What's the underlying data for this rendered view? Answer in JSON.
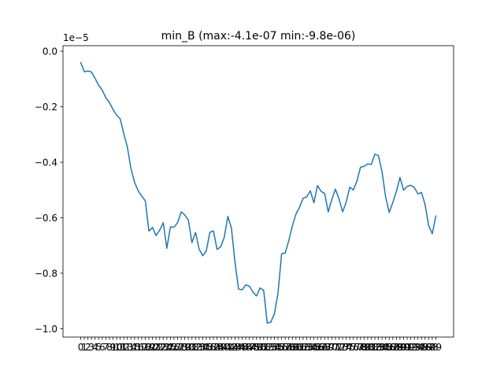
{
  "chart_data": {
    "type": "line",
    "title": "min_B (max:-4.1e-07 min:-9.8e-06)",
    "xlabel": "",
    "ylabel": "",
    "y_offset_text": "1e−5",
    "y_scale_factor": 1e-05,
    "ylim": [
      -1.03,
      0.02
    ],
    "xlim": [
      -4.95,
      103.95
    ],
    "grid": false,
    "legend": "none",
    "x_tick_labels": [
      "0",
      "1",
      "2",
      "3",
      "4",
      "5",
      "6",
      "7",
      "8",
      "9",
      "10",
      "11",
      "12",
      "13",
      "14",
      "15",
      "16",
      "17",
      "18",
      "19",
      "20",
      "21",
      "22",
      "23",
      "24",
      "25",
      "26",
      "27",
      "28",
      "29",
      "30",
      "31",
      "32",
      "33",
      "34",
      "35",
      "36",
      "37",
      "38",
      "39",
      "40",
      "41",
      "42",
      "43",
      "44",
      "45",
      "46",
      "47",
      "48",
      "49",
      "50",
      "51",
      "52",
      "53",
      "54",
      "55",
      "56",
      "57",
      "58",
      "59",
      "60",
      "61",
      "62",
      "63",
      "64",
      "65",
      "66",
      "67",
      "68",
      "69",
      "70",
      "71",
      "72",
      "73",
      "74",
      "75",
      "76",
      "77",
      "78",
      "79",
      "80",
      "81",
      "82",
      "83",
      "84",
      "85",
      "86",
      "87",
      "88",
      "89",
      "90",
      "91",
      "92",
      "93",
      "94",
      "95",
      "96",
      "97",
      "98",
      "99"
    ],
    "y_ticks": [
      0.0,
      -0.2,
      -0.4,
      -0.6,
      -0.8,
      -1.0
    ],
    "y_tick_labels": [
      "0.0",
      "−0.2",
      "−0.4",
      "−0.6",
      "−0.8",
      "−1.0"
    ],
    "series": [
      {
        "color": "#1f77b4",
        "x": [
          0,
          1,
          2,
          3,
          4,
          5,
          6,
          7,
          8,
          9,
          10,
          11,
          12,
          13,
          14,
          15,
          16,
          17,
          18,
          19,
          20,
          21,
          22,
          23,
          24,
          25,
          26,
          27,
          28,
          29,
          30,
          31,
          32,
          33,
          34,
          35,
          36,
          37,
          38,
          39,
          40,
          41,
          42,
          43,
          44,
          45,
          46,
          47,
          48,
          49,
          50,
          51,
          52,
          53,
          54,
          55,
          56,
          57,
          58,
          59,
          60,
          61,
          62,
          63,
          64,
          65,
          66,
          67,
          68,
          69,
          70,
          71,
          72,
          73,
          74,
          75,
          76,
          77,
          78,
          79,
          80,
          81,
          82,
          83,
          84,
          85,
          86,
          87,
          88,
          89,
          90,
          91,
          92,
          93,
          94,
          95,
          96,
          97,
          98,
          99
        ],
        "values": [
          -0.041,
          -0.074,
          -0.071,
          -0.075,
          -0.098,
          -0.123,
          -0.14,
          -0.168,
          -0.185,
          -0.21,
          -0.23,
          -0.244,
          -0.297,
          -0.346,
          -0.423,
          -0.472,
          -0.503,
          -0.522,
          -0.539,
          -0.648,
          -0.635,
          -0.664,
          -0.645,
          -0.618,
          -0.71,
          -0.633,
          -0.634,
          -0.618,
          -0.579,
          -0.59,
          -0.608,
          -0.69,
          -0.653,
          -0.713,
          -0.737,
          -0.72,
          -0.652,
          -0.648,
          -0.714,
          -0.705,
          -0.671,
          -0.595,
          -0.637,
          -0.76,
          -0.857,
          -0.86,
          -0.842,
          -0.846,
          -0.868,
          -0.882,
          -0.853,
          -0.862,
          -0.98,
          -0.976,
          -0.946,
          -0.871,
          -0.73,
          -0.727,
          -0.683,
          -0.629,
          -0.587,
          -0.562,
          -0.53,
          -0.525,
          -0.503,
          -0.546,
          -0.484,
          -0.505,
          -0.513,
          -0.579,
          -0.534,
          -0.497,
          -0.532,
          -0.579,
          -0.544,
          -0.49,
          -0.5,
          -0.468,
          -0.418,
          -0.415,
          -0.406,
          -0.408,
          -0.371,
          -0.376,
          -0.434,
          -0.525,
          -0.581,
          -0.545,
          -0.505,
          -0.455,
          -0.501,
          -0.487,
          -0.483,
          -0.491,
          -0.514,
          -0.509,
          -0.553,
          -0.628,
          -0.658,
          -0.594
        ]
      }
    ]
  }
}
